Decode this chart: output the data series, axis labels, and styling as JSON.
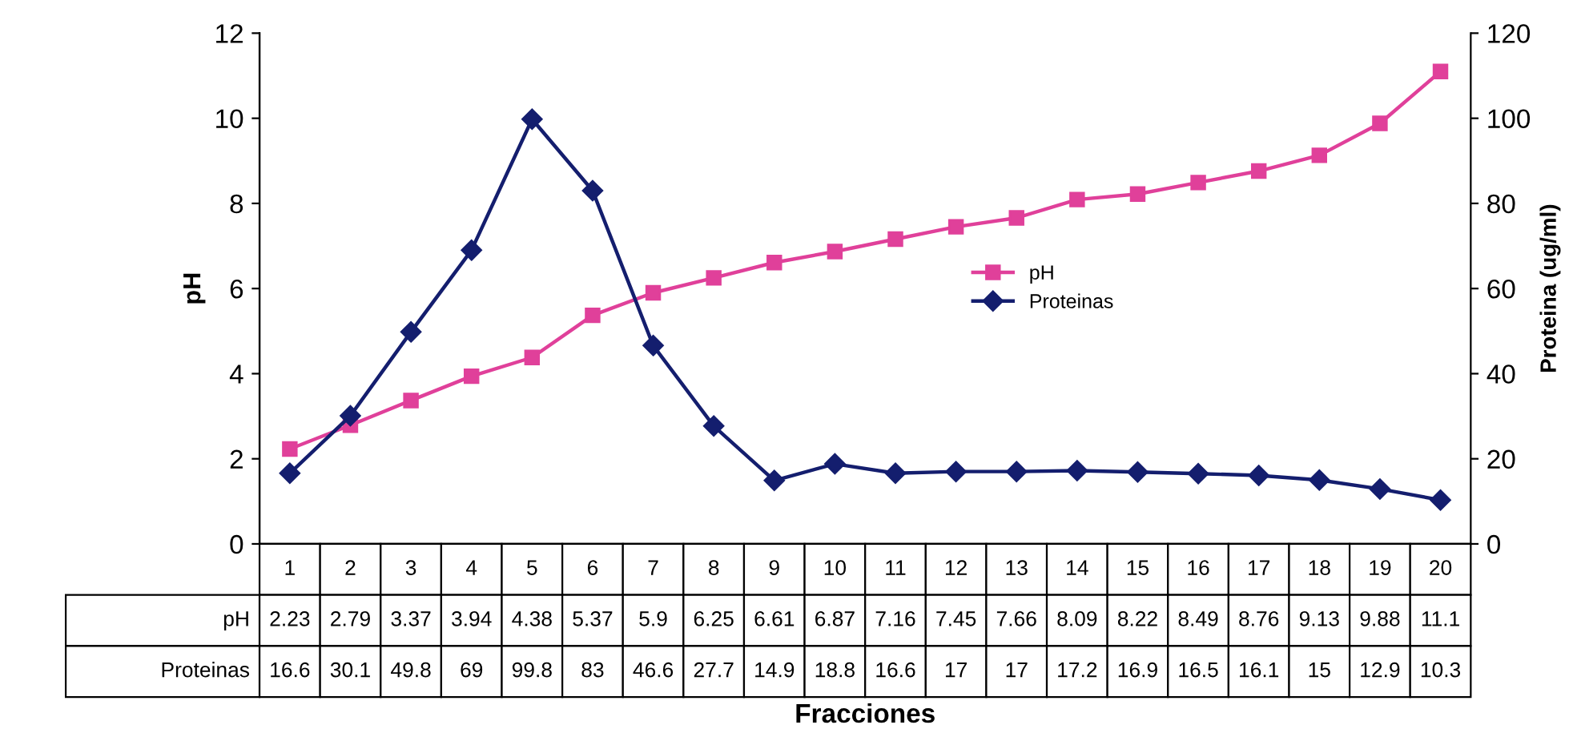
{
  "chart_data": {
    "type": "line",
    "xlabel": "Fracciones",
    "ylabel": "pH",
    "y2label": "Proteina (ug/ml)",
    "categories": [
      "1",
      "2",
      "3",
      "4",
      "5",
      "6",
      "7",
      "8",
      "9",
      "10",
      "11",
      "12",
      "13",
      "14",
      "15",
      "16",
      "17",
      "18",
      "19",
      "20"
    ],
    "series": [
      {
        "name": "pH",
        "color": "#e0409a",
        "marker": "square",
        "values": [
          2.23,
          2.79,
          3.37,
          3.94,
          4.38,
          5.37,
          5.9,
          6.25,
          6.61,
          6.87,
          7.16,
          7.45,
          7.66,
          8.09,
          8.22,
          8.49,
          8.76,
          9.13,
          9.88,
          11.1
        ]
      },
      {
        "name": "Proteinas",
        "color": "#141e6e",
        "marker": "diamond",
        "axis": "y2",
        "values": [
          16.6,
          30.1,
          49.8,
          69,
          99.8,
          83,
          46.6,
          27.7,
          14.9,
          18.8,
          16.6,
          17,
          17,
          17.2,
          16.9,
          16.5,
          16.1,
          15,
          12.9,
          10.3
        ]
      }
    ],
    "ylim": [
      0,
      12
    ],
    "yticks": [
      0,
      2,
      4,
      6,
      8,
      10,
      12
    ],
    "y2lim": [
      0,
      120
    ],
    "y2ticks": [
      0,
      20,
      40,
      60,
      80,
      100,
      120
    ],
    "legend": "center right",
    "grid": false,
    "data_labels": true
  }
}
